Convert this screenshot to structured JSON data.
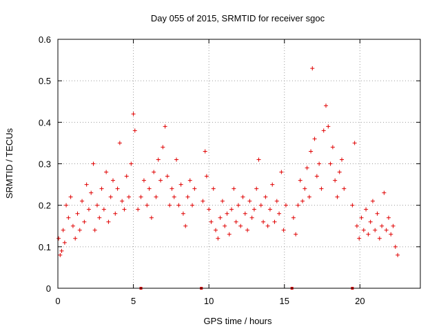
{
  "chart_data": {
    "type": "scatter",
    "title": "Day 055 of 2015, SRMTID for receiver sgoc",
    "xlabel": "GPS time / hours",
    "ylabel": "SRMTID / TECUs",
    "xlim": [
      0,
      24
    ],
    "ylim": [
      0,
      0.6
    ],
    "xticks": [
      0,
      5,
      10,
      15,
      20
    ],
    "yticks": [
      0,
      0.1,
      0.2,
      0.3,
      0.4,
      0.5,
      0.6
    ],
    "grid": true,
    "marker": "+",
    "color": "#e00000",
    "series": [
      {
        "name": "SRMTID",
        "x": [
          0.05,
          0.15,
          0.25,
          0.35,
          0.45,
          0.55,
          0.7,
          0.85,
          1.0,
          1.15,
          1.3,
          1.45,
          1.6,
          1.75,
          1.9,
          2.05,
          2.2,
          2.35,
          2.45,
          2.6,
          2.75,
          2.9,
          3.05,
          3.2,
          3.35,
          3.5,
          3.65,
          3.8,
          3.95,
          4.1,
          4.25,
          4.4,
          4.55,
          4.7,
          4.85,
          5.0,
          5.1,
          5.3,
          5.5,
          5.7,
          5.9,
          6.05,
          6.2,
          6.35,
          6.5,
          6.65,
          6.8,
          6.95,
          7.1,
          7.25,
          7.4,
          7.55,
          7.7,
          7.85,
          8.0,
          8.15,
          8.3,
          8.45,
          8.6,
          8.75,
          8.9,
          9.05,
          9.6,
          9.75,
          9.85,
          10.0,
          10.15,
          10.3,
          10.45,
          10.6,
          10.75,
          10.9,
          11.05,
          11.2,
          11.35,
          11.5,
          11.65,
          11.8,
          11.95,
          12.1,
          12.25,
          12.4,
          12.55,
          12.7,
          12.85,
          13.0,
          13.15,
          13.3,
          13.45,
          13.6,
          13.75,
          13.9,
          14.05,
          14.2,
          14.35,
          14.5,
          14.65,
          14.8,
          14.95,
          15.1,
          15.6,
          15.75,
          15.9,
          16.05,
          16.2,
          16.35,
          16.5,
          16.65,
          16.75,
          16.85,
          17.0,
          17.15,
          17.3,
          17.45,
          17.6,
          17.75,
          17.9,
          18.05,
          18.2,
          18.35,
          18.5,
          18.65,
          18.8,
          18.95,
          19.5,
          19.65,
          19.8,
          19.95,
          20.1,
          20.25,
          20.4,
          20.55,
          20.7,
          20.85,
          21.0,
          21.15,
          21.3,
          21.45,
          21.6,
          21.75,
          21.9,
          22.05,
          22.2,
          22.35,
          22.5
        ],
        "y": [
          0.12,
          0.08,
          0.09,
          0.14,
          0.11,
          0.2,
          0.17,
          0.22,
          0.15,
          0.12,
          0.18,
          0.14,
          0.21,
          0.16,
          0.25,
          0.19,
          0.23,
          0.3,
          0.14,
          0.2,
          0.17,
          0.24,
          0.19,
          0.28,
          0.16,
          0.22,
          0.26,
          0.18,
          0.24,
          0.35,
          0.21,
          0.19,
          0.27,
          0.22,
          0.3,
          0.42,
          0.38,
          0.19,
          0.22,
          0.26,
          0.2,
          0.24,
          0.17,
          0.28,
          0.22,
          0.31,
          0.26,
          0.34,
          0.39,
          0.27,
          0.2,
          0.24,
          0.22,
          0.31,
          0.2,
          0.25,
          0.18,
          0.15,
          0.22,
          0.26,
          0.2,
          0.24,
          0.21,
          0.33,
          0.27,
          0.19,
          0.16,
          0.24,
          0.14,
          0.12,
          0.17,
          0.21,
          0.15,
          0.18,
          0.13,
          0.19,
          0.24,
          0.16,
          0.2,
          0.15,
          0.22,
          0.18,
          0.14,
          0.21,
          0.17,
          0.19,
          0.24,
          0.31,
          0.2,
          0.16,
          0.22,
          0.15,
          0.19,
          0.25,
          0.16,
          0.21,
          0.18,
          0.28,
          0.14,
          0.2,
          0.17,
          0.13,
          0.2,
          0.26,
          0.21,
          0.24,
          0.29,
          0.22,
          0.33,
          0.53,
          0.36,
          0.27,
          0.3,
          0.24,
          0.38,
          0.44,
          0.39,
          0.3,
          0.34,
          0.26,
          0.22,
          0.28,
          0.31,
          0.24,
          0.2,
          0.35,
          0.15,
          0.12,
          0.17,
          0.14,
          0.19,
          0.13,
          0.16,
          0.21,
          0.14,
          0.18,
          0.12,
          0.15,
          0.23,
          0.14,
          0.17,
          0.13,
          0.15,
          0.1,
          0.08
        ]
      }
    ],
    "markers_on_axis": [
      5.5,
      9.5,
      15.5,
      19.5
    ]
  }
}
